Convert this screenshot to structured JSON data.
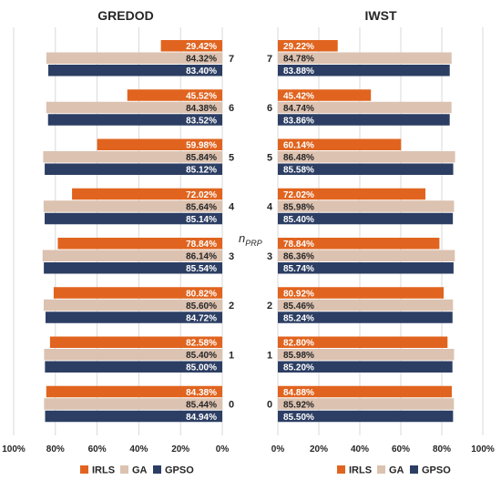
{
  "chart_data": [
    {
      "type": "bar",
      "orientation": "horizontal",
      "direction": "right-to-left",
      "title": "GREDOD",
      "categories": [
        "0",
        "1",
        "2",
        "3",
        "4",
        "5",
        "6",
        "7"
      ],
      "series": [
        {
          "name": "IRLS",
          "values": [
            84.38,
            82.58,
            80.82,
            78.84,
            72.02,
            59.98,
            45.52,
            29.42
          ]
        },
        {
          "name": "GA",
          "values": [
            85.44,
            85.4,
            85.6,
            86.14,
            85.64,
            85.84,
            84.38,
            84.32
          ]
        },
        {
          "name": "GPSO",
          "values": [
            84.94,
            85.0,
            84.72,
            85.54,
            85.14,
            85.12,
            83.52,
            83.4
          ]
        }
      ],
      "data_labels": {
        "IRLS": [
          "84.38%",
          "82.58%",
          "80.82%",
          "78.84%",
          "72.02%",
          "59.98%",
          "45.52%",
          "29.42%"
        ],
        "GA": [
          "85.44%",
          "85.40%",
          "85.60%",
          "86.14%",
          "85.64%",
          "85.84%",
          "84.38%",
          "84.32%"
        ],
        "GPSO": [
          "84.94%",
          "85.00%",
          "84.72%",
          "85.54%",
          "85.14%",
          "85.12%",
          "83.52%",
          "83.40%"
        ]
      },
      "xlim": [
        0,
        100
      ],
      "xticks": [
        "100%",
        "80%",
        "60%",
        "40%",
        "20%",
        "0%"
      ],
      "grid": true
    },
    {
      "type": "bar",
      "orientation": "horizontal",
      "direction": "left-to-right",
      "title": "IWST",
      "categories": [
        "0",
        "1",
        "2",
        "3",
        "4",
        "5",
        "6",
        "7"
      ],
      "series": [
        {
          "name": "IRLS",
          "values": [
            84.88,
            82.8,
            80.92,
            78.84,
            72.02,
            60.14,
            45.42,
            29.22
          ]
        },
        {
          "name": "GA",
          "values": [
            85.92,
            85.98,
            85.46,
            86.36,
            85.98,
            86.48,
            84.74,
            84.78
          ]
        },
        {
          "name": "GPSO",
          "values": [
            85.5,
            85.2,
            85.24,
            85.74,
            85.4,
            85.58,
            83.86,
            83.88
          ]
        }
      ],
      "data_labels": {
        "IRLS": [
          "84.88%",
          "82.80%",
          "80.92%",
          "78.84%",
          "72.02%",
          "60.14%",
          "45.42%",
          "29.22%"
        ],
        "GA": [
          "85.92%",
          "85.98%",
          "85.46%",
          "86.36%",
          "85.98%",
          "86.48%",
          "84.74%",
          "84.78%"
        ],
        "GPSO": [
          "85.50%",
          "85.20%",
          "85.24%",
          "85.74%",
          "85.40%",
          "85.58%",
          "83.86%",
          "83.88%"
        ]
      },
      "xlim": [
        0,
        100
      ],
      "xticks": [
        "0%",
        "20%",
        "40%",
        "60%",
        "80%",
        "100%"
      ],
      "grid": true
    }
  ],
  "axis_label": {
    "main": "n",
    "subscript": "PRP"
  },
  "legend": {
    "placement": "bottom",
    "items": [
      {
        "name": "IRLS",
        "color": "#E0641F"
      },
      {
        "name": "GA",
        "color": "#DCC2B0"
      },
      {
        "name": "GPSO",
        "color": "#2C3E63"
      }
    ]
  },
  "colors": {
    "IRLS": "#E0641F",
    "GA": "#DCC2B0",
    "GPSO": "#2C3E63",
    "label_on_dark": "#FFFFFF",
    "label_on_light": "#262626",
    "grid": "#D9D9D9"
  }
}
